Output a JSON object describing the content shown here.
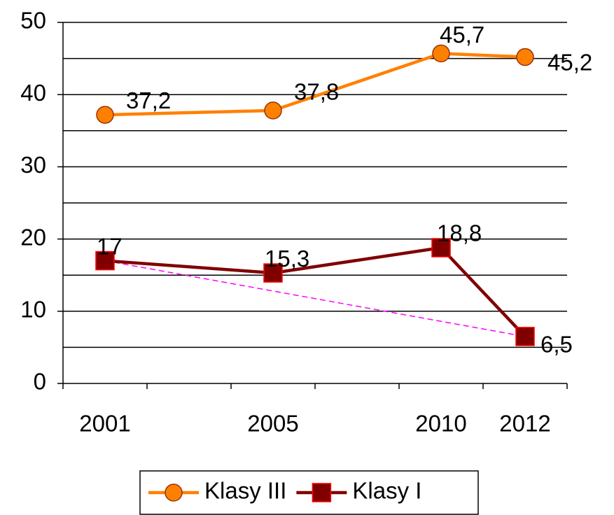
{
  "chart_data": {
    "type": "line",
    "categories": [
      "2001",
      null,
      "2005",
      null,
      "2010",
      "2012"
    ],
    "series": [
      {
        "name": "Klasy III",
        "color": "#ff8000",
        "marker": "circle",
        "marker_fill": "#ff8000",
        "marker_edge": "#993300",
        "values": [
          37.2,
          null,
          37.8,
          null,
          45.7,
          45.2
        ],
        "value_labels": [
          "37,2",
          null,
          "37,8",
          null,
          "45,7",
          "45,2"
        ]
      },
      {
        "name": "Klasy I",
        "color": "#800000",
        "marker": "square",
        "marker_fill": "#800000",
        "marker_edge": "#ff0000",
        "values": [
          17,
          null,
          15.3,
          null,
          18.8,
          6.5
        ],
        "value_labels": [
          "17",
          null,
          "15,3",
          null,
          "18,8",
          "6,5"
        ],
        "trendline_color": "#ff00ff"
      }
    ],
    "connect_gaps": true,
    "ylim": [
      0,
      50
    ],
    "yticks": [
      0,
      10,
      20,
      30,
      40,
      50
    ],
    "grid_yticks": [
      5,
      10,
      15,
      20,
      25,
      30,
      35,
      40,
      45,
      50
    ],
    "legend": "bottom"
  }
}
